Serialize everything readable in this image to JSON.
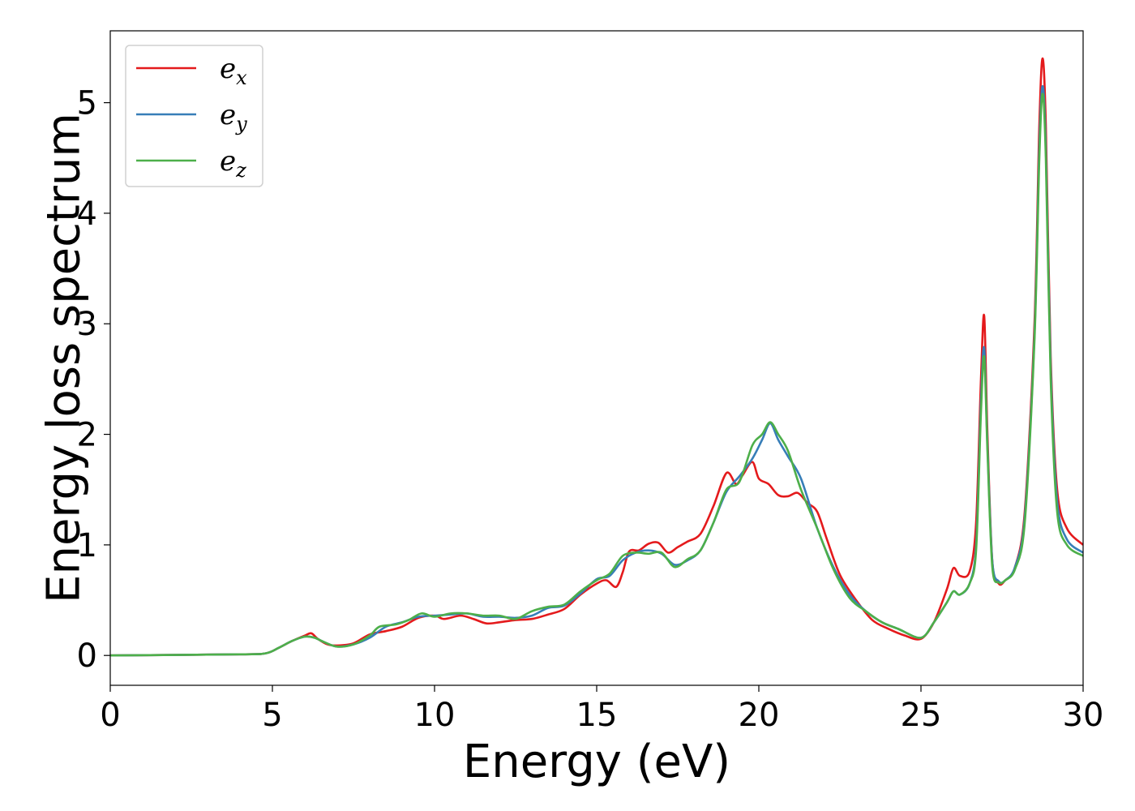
{
  "chart_data": {
    "type": "line",
    "title": "",
    "xlabel": "Energy (eV)",
    "ylabel": "Energy loss spectrum",
    "xlim": [
      0,
      30
    ],
    "ylim": [
      -0.27,
      5.65
    ],
    "xticks": [
      "0",
      "5",
      "10",
      "15",
      "20",
      "25",
      "30"
    ],
    "yticks": [
      "0",
      "1",
      "2",
      "3",
      "4",
      "5"
    ],
    "grid": false,
    "legend_position": "top-left",
    "series": [
      {
        "name": "e_x",
        "label_base": "e",
        "label_sub": "x",
        "color": "#e41a1c",
        "x": [
          0,
          4,
          4.8,
          5.2,
          5.6,
          6.0,
          6.2,
          6.4,
          6.7,
          7.0,
          7.5,
          8.0,
          8.5,
          9.0,
          9.5,
          10.0,
          10.3,
          10.8,
          11.2,
          11.6,
          12.0,
          12.5,
          13.0,
          13.5,
          14.0,
          14.5,
          15.0,
          15.3,
          15.6,
          15.8,
          16.0,
          16.3,
          16.6,
          16.9,
          17.2,
          17.5,
          17.8,
          18.2,
          18.6,
          19.0,
          19.3,
          19.5,
          19.8,
          20.0,
          20.3,
          20.6,
          20.9,
          21.2,
          21.5,
          21.8,
          22.1,
          22.5,
          23.0,
          23.5,
          24.0,
          24.5,
          25.0,
          25.4,
          25.8,
          26.0,
          26.2,
          26.5,
          26.7,
          26.85,
          26.95,
          27.05,
          27.2,
          27.4,
          27.6,
          27.9,
          28.2,
          28.5,
          28.65,
          28.75,
          28.85,
          29.0,
          29.2,
          29.5,
          30.0
        ],
        "values": [
          0,
          0.01,
          0.02,
          0.07,
          0.13,
          0.18,
          0.2,
          0.15,
          0.1,
          0.09,
          0.11,
          0.19,
          0.22,
          0.26,
          0.34,
          0.36,
          0.33,
          0.36,
          0.33,
          0.29,
          0.3,
          0.32,
          0.33,
          0.37,
          0.42,
          0.55,
          0.65,
          0.68,
          0.62,
          0.75,
          0.94,
          0.95,
          1.01,
          1.02,
          0.93,
          0.98,
          1.03,
          1.1,
          1.35,
          1.65,
          1.55,
          1.63,
          1.75,
          1.6,
          1.55,
          1.45,
          1.44,
          1.47,
          1.38,
          1.3,
          1.05,
          0.73,
          0.5,
          0.32,
          0.24,
          0.18,
          0.15,
          0.3,
          0.6,
          0.79,
          0.72,
          0.76,
          1.2,
          2.5,
          3.07,
          2.0,
          0.85,
          0.65,
          0.68,
          0.8,
          1.3,
          3.0,
          4.8,
          5.4,
          4.8,
          2.7,
          1.5,
          1.15,
          1.0
        ]
      },
      {
        "name": "e_y",
        "label_base": "e",
        "label_sub": "y",
        "color": "#377eb8",
        "x": [
          0,
          4,
          4.8,
          5.2,
          5.6,
          6.0,
          6.3,
          6.6,
          7.0,
          7.5,
          8.0,
          8.5,
          9.0,
          9.5,
          10.0,
          10.5,
          11.0,
          11.5,
          12.0,
          12.5,
          13.0,
          13.5,
          14.0,
          14.5,
          15.0,
          15.4,
          15.8,
          16.2,
          16.6,
          17.0,
          17.4,
          17.8,
          18.2,
          18.6,
          19.0,
          19.4,
          19.8,
          20.1,
          20.35,
          20.6,
          20.9,
          21.3,
          21.8,
          22.3,
          22.8,
          23.3,
          23.8,
          24.3,
          25.0,
          25.4,
          25.8,
          26.0,
          26.2,
          26.5,
          26.7,
          26.85,
          26.95,
          27.05,
          27.2,
          27.4,
          27.6,
          27.9,
          28.2,
          28.5,
          28.65,
          28.75,
          28.85,
          29.0,
          29.2,
          29.5,
          30.0
        ],
        "values": [
          0,
          0.01,
          0.02,
          0.07,
          0.13,
          0.17,
          0.16,
          0.12,
          0.08,
          0.1,
          0.16,
          0.26,
          0.3,
          0.35,
          0.36,
          0.37,
          0.38,
          0.35,
          0.35,
          0.34,
          0.36,
          0.43,
          0.45,
          0.56,
          0.69,
          0.72,
          0.86,
          0.93,
          0.95,
          0.92,
          0.82,
          0.86,
          0.95,
          1.2,
          1.48,
          1.62,
          1.78,
          1.95,
          2.1,
          1.95,
          1.8,
          1.6,
          1.15,
          0.8,
          0.55,
          0.4,
          0.3,
          0.24,
          0.16,
          0.3,
          0.48,
          0.58,
          0.55,
          0.65,
          1.0,
          2.3,
          2.78,
          1.9,
          0.85,
          0.67,
          0.68,
          0.8,
          1.25,
          2.9,
          4.6,
          5.15,
          4.6,
          2.6,
          1.4,
          1.05,
          0.93
        ]
      },
      {
        "name": "e_z",
        "label_base": "e",
        "label_sub": "z",
        "color": "#4daf4a",
        "x": [
          0,
          4,
          4.8,
          5.2,
          5.6,
          6.0,
          6.3,
          6.6,
          7.0,
          7.5,
          8.0,
          8.3,
          8.8,
          9.2,
          9.6,
          10.0,
          10.5,
          11.0,
          11.5,
          12.0,
          12.5,
          13.0,
          13.5,
          14.0,
          14.5,
          15.0,
          15.4,
          15.8,
          16.2,
          16.6,
          17.0,
          17.4,
          17.8,
          18.2,
          18.6,
          19.0,
          19.4,
          19.8,
          20.1,
          20.35,
          20.6,
          20.9,
          21.3,
          21.8,
          22.3,
          22.8,
          23.3,
          23.8,
          24.3,
          25.0,
          25.4,
          25.8,
          26.0,
          26.2,
          26.5,
          26.7,
          26.85,
          26.95,
          27.05,
          27.2,
          27.4,
          27.6,
          27.9,
          28.2,
          28.5,
          28.65,
          28.75,
          28.85,
          29.0,
          29.2,
          29.5,
          30.0
        ],
        "values": [
          0,
          0.01,
          0.02,
          0.07,
          0.13,
          0.17,
          0.16,
          0.12,
          0.08,
          0.1,
          0.18,
          0.26,
          0.28,
          0.32,
          0.38,
          0.35,
          0.38,
          0.38,
          0.36,
          0.36,
          0.33,
          0.4,
          0.44,
          0.46,
          0.58,
          0.68,
          0.74,
          0.9,
          0.93,
          0.92,
          0.93,
          0.8,
          0.87,
          0.95,
          1.2,
          1.5,
          1.57,
          1.9,
          2.0,
          2.11,
          2.0,
          1.85,
          1.5,
          1.15,
          0.78,
          0.52,
          0.4,
          0.3,
          0.24,
          0.16,
          0.3,
          0.48,
          0.58,
          0.55,
          0.65,
          0.95,
          2.2,
          2.7,
          1.85,
          0.8,
          0.66,
          0.68,
          0.78,
          1.2,
          2.85,
          4.5,
          5.08,
          4.5,
          2.5,
          1.3,
          1.0,
          0.9
        ]
      }
    ]
  }
}
